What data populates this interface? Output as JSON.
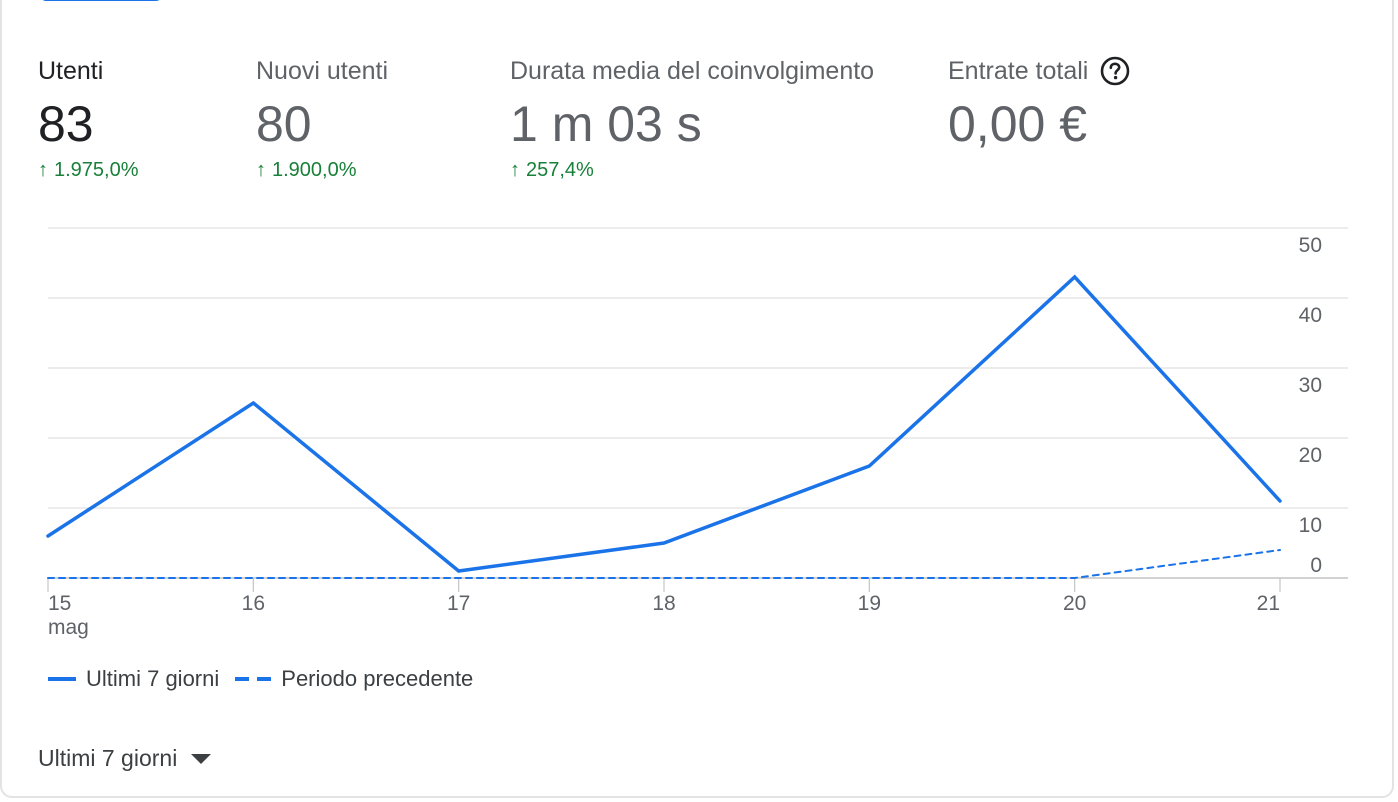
{
  "metrics": [
    {
      "label": "Utenti",
      "value": "83",
      "change": "1.975,0%",
      "active": true
    },
    {
      "label": "Nuovi utenti",
      "value": "80",
      "change": "1.900,0%",
      "active": false
    },
    {
      "label": "Durata media del coinvolgimento",
      "value": "1 m 03 s",
      "change": "257,4%",
      "active": false
    },
    {
      "label": "Entrate totali",
      "value": "0,00 €",
      "change": "",
      "active": false
    }
  ],
  "icons": {
    "change_arrow": "arrow-up-icon",
    "help": "help-circle-icon",
    "dropdown": "caret-down-icon"
  },
  "colors": {
    "accent": "#1a73e8",
    "positive": "#188038",
    "text_primary": "#202124",
    "text_secondary": "#5f6368",
    "grid": "#e0e0e0"
  },
  "chart_data": {
    "type": "line",
    "x": [
      "15",
      "16",
      "17",
      "18",
      "19",
      "20",
      "21"
    ],
    "x_sublabel_first": "mag",
    "series": [
      {
        "name": "Ultimi 7 giorni",
        "style": "solid",
        "values": [
          6,
          25,
          1,
          5,
          16,
          43,
          11
        ]
      },
      {
        "name": "Periodo precedente",
        "style": "dashed",
        "values": [
          0,
          0,
          0,
          0,
          0,
          0,
          4
        ]
      }
    ],
    "yticks": [
      0,
      10,
      20,
      30,
      40,
      50
    ],
    "ylim": [
      0,
      50
    ],
    "y_axis_side": "right",
    "grid": true,
    "legend_placement": "bottom-left"
  },
  "footer": {
    "period_label": "Ultimi 7 giorni"
  }
}
